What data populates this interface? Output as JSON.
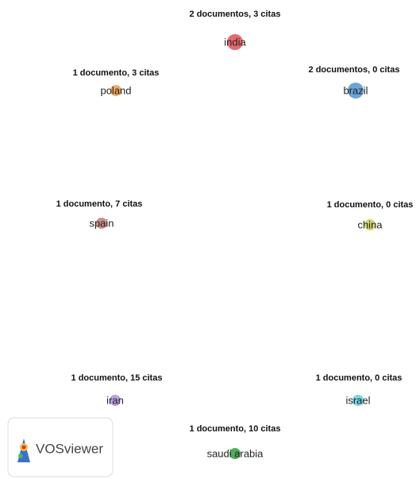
{
  "nodes": [
    {
      "label": "india",
      "annotation": "2 documentos, 3 citas",
      "color": "#e45a5f"
    },
    {
      "label": "poland",
      "annotation": "1 documento, 3 citas",
      "color": "#f0a14e"
    },
    {
      "label": "brazil",
      "annotation": "2 documentos, 0 citas",
      "color": "#5a9ad6"
    },
    {
      "label": "spain",
      "annotation": "1 documento, 7 citas",
      "color": "#c4837a"
    },
    {
      "label": "china",
      "annotation": "1 documento, 0 citas",
      "color": "#cbd35a"
    },
    {
      "label": "iran",
      "annotation": "1 documento, 15 citas",
      "color": "#b497de"
    },
    {
      "label": "israel",
      "annotation": "1 documento, 0 citas",
      "color": "#66d2e2"
    },
    {
      "label": "saudi arabia",
      "annotation": "1 documento, 10 citas",
      "color": "#3aa648"
    }
  ],
  "logo": {
    "text": "VOSviewer"
  }
}
